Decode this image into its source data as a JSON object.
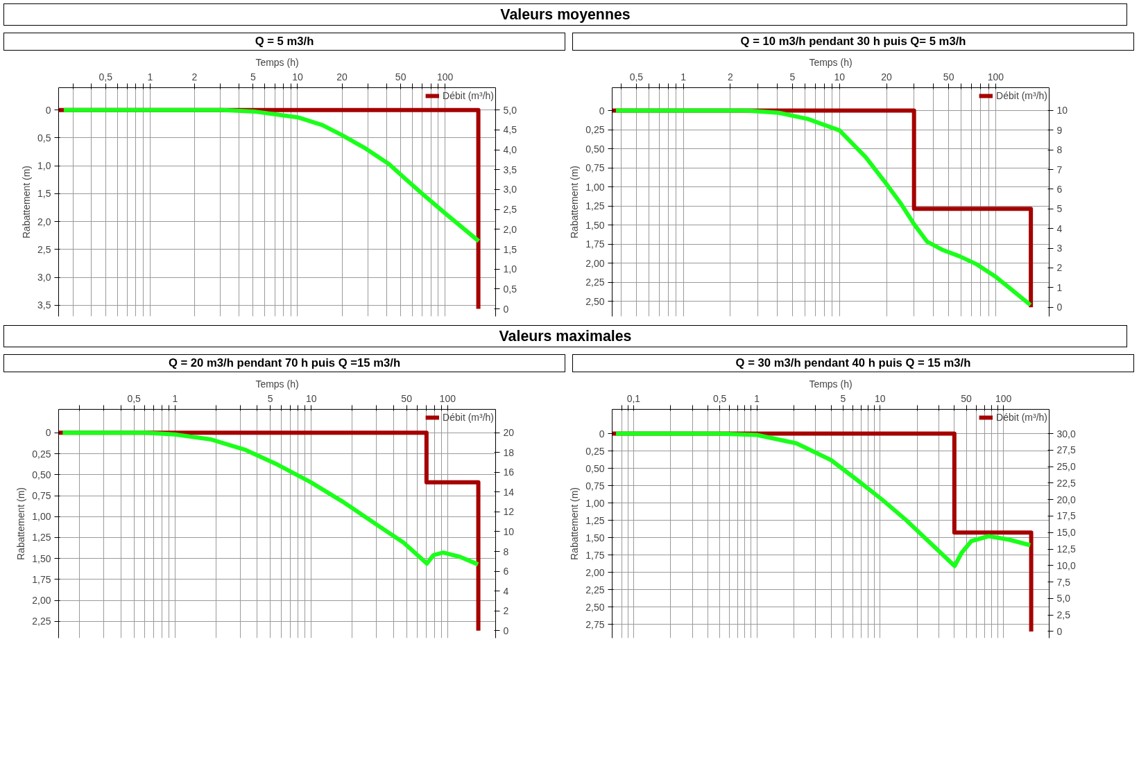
{
  "chart_data": [
    {
      "type": "line",
      "title": "Valeurs moyennes",
      "subtitle": "Q = 5 m3/h",
      "xlabel": "Temps (h)",
      "ylabel": "Rabattement (m)",
      "log": "x",
      "grid": true,
      "legend": "top right",
      "xlim": [
        0.24,
        220
      ],
      "ylim": [
        3.7,
        -0.4
      ],
      "y2lim": [
        -0.19,
        5.56
      ],
      "xticks": [
        {
          "value": 0.3,
          "label": null
        },
        {
          "value": 0.4,
          "label": null
        },
        {
          "value": 0.5,
          "label": "0,5"
        },
        {
          "value": 0.6,
          "label": null
        },
        {
          "value": 0.7,
          "label": null
        },
        {
          "value": 0.8,
          "label": null
        },
        {
          "value": 0.9,
          "label": null
        },
        1,
        2,
        {
          "value": 3,
          "label": null
        },
        {
          "value": 4,
          "label": null
        },
        5,
        {
          "value": 6,
          "label": null
        },
        {
          "value": 7,
          "label": null
        },
        {
          "value": 8,
          "label": null
        },
        {
          "value": 9,
          "label": null
        },
        10,
        20,
        {
          "value": 30,
          "label": null
        },
        {
          "value": 40,
          "label": null
        },
        50,
        {
          "value": 60,
          "label": null
        },
        {
          "value": 70,
          "label": null
        },
        {
          "value": 80,
          "label": null
        },
        {
          "value": 90,
          "label": null
        },
        100
      ],
      "yticks": [
        {
          "value": 0,
          "label": "0"
        },
        {
          "value": 0.5,
          "label": "0,5"
        },
        {
          "value": 1,
          "label": "1,0"
        },
        {
          "value": 1.5,
          "label": "1,5"
        },
        {
          "value": 2,
          "label": "2,0"
        },
        {
          "value": 2.5,
          "label": "2,5"
        },
        {
          "value": 3,
          "label": "3,0"
        },
        {
          "value": 3.5,
          "label": "3,5"
        }
      ],
      "y2ticks": [
        0,
        {
          "value": 0.5,
          "label": "0,5"
        },
        {
          "value": 1,
          "label": "1,0"
        },
        {
          "value": 1.5,
          "label": "1,5"
        },
        {
          "value": 2,
          "label": "2,0"
        },
        {
          "value": 2.5,
          "label": "2,5"
        },
        {
          "value": 3,
          "label": "3,0"
        },
        {
          "value": 3.5,
          "label": "3,5"
        },
        {
          "value": 4,
          "label": "4,0"
        },
        {
          "value": 4.5,
          "label": "4,5"
        },
        {
          "value": 5,
          "label": "5,0"
        }
      ],
      "series": [
        {
          "name": "Débit (m³/h)",
          "color": "#a50000",
          "axis": "y2",
          "x": [
            0.24,
            168,
            168
          ],
          "values": [
            5,
            5,
            0
          ]
        },
        {
          "color": "#1aff1a",
          "x": [
            0.26,
            3.1,
            5.2,
            10,
            14.7,
            20,
            28.9,
            41.7,
            53.6,
            70,
            100,
            169
          ],
          "values": [
            0,
            0,
            0.03,
            0.13,
            0.27,
            0.45,
            0.69,
            0.97,
            1.23,
            1.5,
            1.85,
            2.35
          ]
        }
      ]
    },
    {
      "type": "line",
      "subtitle": "Q = 10 m3/h pendant 30 h puis Q= 5 m3/h",
      "xlabel": "Temps (h)",
      "ylabel": "Rabattement (m)",
      "log": "x",
      "grid": true,
      "legend": "top right",
      "xlim": [
        0.35,
        220
      ],
      "ylim": [
        2.7,
        -0.3
      ],
      "y2lim": [
        -0.47,
        11.16
      ],
      "xticks": [
        {
          "value": 0.4,
          "label": null
        },
        {
          "value": 0.5,
          "label": "0,5"
        },
        {
          "value": 0.6,
          "label": null
        },
        {
          "value": 0.7,
          "label": null
        },
        {
          "value": 0.8,
          "label": null
        },
        {
          "value": 0.9,
          "label": null
        },
        1,
        2,
        {
          "value": 3,
          "label": null
        },
        {
          "value": 4,
          "label": null
        },
        5,
        {
          "value": 6,
          "label": null
        },
        {
          "value": 7,
          "label": null
        },
        {
          "value": 8,
          "label": null
        },
        {
          "value": 9,
          "label": null
        },
        10,
        20,
        {
          "value": 30,
          "label": null
        },
        {
          "value": 40,
          "label": null
        },
        50,
        {
          "value": 60,
          "label": null
        },
        {
          "value": 70,
          "label": null
        },
        {
          "value": 80,
          "label": null
        },
        {
          "value": 90,
          "label": null
        },
        100
      ],
      "yticks": [
        {
          "value": 0,
          "label": "0"
        },
        {
          "value": 0.25,
          "label": "0,25"
        },
        {
          "value": 0.5,
          "label": "0,50"
        },
        {
          "value": 0.75,
          "label": "0,75"
        },
        {
          "value": 1,
          "label": "1,00"
        },
        {
          "value": 1.25,
          "label": "1,25"
        },
        {
          "value": 1.5,
          "label": "1,50"
        },
        {
          "value": 1.75,
          "label": "1,75"
        },
        {
          "value": 2,
          "label": "2,00"
        },
        {
          "value": 2.25,
          "label": "2,25"
        },
        {
          "value": 2.5,
          "label": "2,50"
        }
      ],
      "y2ticks": [
        0,
        1,
        2,
        3,
        4,
        5,
        6,
        7,
        8,
        9,
        10
      ],
      "series": [
        {
          "name": "Débit (m³/h)",
          "color": "#a50000",
          "axis": "y2",
          "x": [
            0.35,
            30,
            30,
            168,
            168
          ],
          "values": [
            10,
            10,
            5,
            5,
            0
          ]
        },
        {
          "color": "#1aff1a",
          "x": [
            0.37,
            2.54,
            4.1,
            6.27,
            10,
            14.7,
            20.1,
            24.9,
            30,
            36.4,
            46,
            58.6,
            74.6,
            98.5,
            125,
            167
          ],
          "values": [
            0,
            0,
            0.03,
            0.11,
            0.26,
            0.61,
            0.97,
            1.23,
            1.49,
            1.72,
            1.83,
            1.91,
            2.01,
            2.17,
            2.34,
            2.55
          ]
        }
      ]
    },
    {
      "type": "line",
      "title": "Valeurs maximales",
      "subtitle": "Q = 20 m3/h pendant 70 h puis Q =15 m3/h",
      "xlabel": "Temps (h)",
      "ylabel": "Rabattement (m)",
      "log": "x",
      "grid": true,
      "legend": "top right",
      "xlim": [
        0.14,
        225
      ],
      "ylim": [
        2.45,
        -0.28
      ],
      "y2lim": [
        -0.76,
        22.37
      ],
      "xticks": [
        {
          "value": 0.2,
          "label": null
        },
        {
          "value": 0.3,
          "label": null
        },
        {
          "value": 0.4,
          "label": null
        },
        {
          "value": 0.5,
          "label": "0,5"
        },
        {
          "value": 0.6,
          "label": null
        },
        {
          "value": 0.7,
          "label": null
        },
        {
          "value": 0.8,
          "label": null
        },
        {
          "value": 0.9,
          "label": null
        },
        1,
        {
          "value": 2,
          "label": null
        },
        {
          "value": 3,
          "label": null
        },
        {
          "value": 4,
          "label": null
        },
        5,
        {
          "value": 6,
          "label": null
        },
        {
          "value": 7,
          "label": null
        },
        {
          "value": 8,
          "label": null
        },
        {
          "value": 9,
          "label": null
        },
        10,
        {
          "value": 20,
          "label": null
        },
        {
          "value": 30,
          "label": null
        },
        {
          "value": 40,
          "label": null
        },
        50,
        {
          "value": 60,
          "label": null
        },
        {
          "value": 70,
          "label": null
        },
        {
          "value": 80,
          "label": null
        },
        {
          "value": 90,
          "label": null
        },
        100
      ],
      "yticks": [
        {
          "value": 0,
          "label": "0"
        },
        {
          "value": 0.25,
          "label": "0,25"
        },
        {
          "value": 0.5,
          "label": "0,50"
        },
        {
          "value": 0.75,
          "label": "0,75"
        },
        {
          "value": 1,
          "label": "1,00"
        },
        {
          "value": 1.25,
          "label": "1,25"
        },
        {
          "value": 1.5,
          "label": "1,50"
        },
        {
          "value": 1.75,
          "label": "1,75"
        },
        {
          "value": 2,
          "label": "2,00"
        },
        {
          "value": 2.25,
          "label": "2,25"
        }
      ],
      "y2ticks": [
        0,
        2,
        4,
        6,
        8,
        10,
        12,
        14,
        16,
        18,
        20
      ],
      "series": [
        {
          "name": "Débit (m³/h)",
          "color": "#a50000",
          "axis": "y2",
          "x": [
            0.14,
            70,
            70,
            168,
            168
          ],
          "values": [
            20,
            20,
            15,
            15,
            0
          ]
        },
        {
          "color": "#1aff1a",
          "x": [
            0.15,
            0.6,
            1,
            1.85,
            3.24,
            5.66,
            9.9,
            17.3,
            30.4,
            47.5,
            70.5,
            78.7,
            92.9,
            123,
            167
          ],
          "values": [
            0,
            0,
            0.02,
            0.08,
            0.2,
            0.38,
            0.59,
            0.83,
            1.1,
            1.31,
            1.56,
            1.46,
            1.43,
            1.48,
            1.57
          ]
        }
      ]
    },
    {
      "type": "line",
      "subtitle": "Q = 30 m3/h pendant 40 h puis Q = 15 m3/h",
      "xlabel": "Temps (h)",
      "ylabel": "Rabattement (m)",
      "log": "x",
      "grid": true,
      "legend": "top right",
      "xlim": [
        0.067,
        235
      ],
      "ylim": [
        2.95,
        -0.35
      ],
      "y2lim": [
        -1.0,
        33.68
      ],
      "xticks": [
        {
          "value": 0.08,
          "label": null
        },
        {
          "value": 0.09,
          "label": null
        },
        {
          "value": 0.1,
          "label": "0,1"
        },
        {
          "value": 0.2,
          "label": null
        },
        {
          "value": 0.3,
          "label": null
        },
        {
          "value": 0.4,
          "label": null
        },
        {
          "value": 0.5,
          "label": "0,5"
        },
        {
          "value": 0.6,
          "label": null
        },
        {
          "value": 0.7,
          "label": null
        },
        {
          "value": 0.8,
          "label": null
        },
        {
          "value": 0.9,
          "label": null
        },
        1,
        {
          "value": 2,
          "label": null
        },
        {
          "value": 3,
          "label": null
        },
        {
          "value": 4,
          "label": null
        },
        5,
        {
          "value": 6,
          "label": null
        },
        {
          "value": 7,
          "label": null
        },
        {
          "value": 8,
          "label": null
        },
        {
          "value": 9,
          "label": null
        },
        10,
        {
          "value": 20,
          "label": null
        },
        {
          "value": 30,
          "label": null
        },
        {
          "value": 40,
          "label": null
        },
        50,
        {
          "value": 60,
          "label": null
        },
        {
          "value": 70,
          "label": null
        },
        {
          "value": 80,
          "label": null
        },
        {
          "value": 90,
          "label": null
        },
        100
      ],
      "yticks": [
        {
          "value": 0,
          "label": "0"
        },
        {
          "value": 0.25,
          "label": "0,25"
        },
        {
          "value": 0.5,
          "label": "0,50"
        },
        {
          "value": 0.75,
          "label": "0,75"
        },
        {
          "value": 1,
          "label": "1,00"
        },
        {
          "value": 1.25,
          "label": "1,25"
        },
        {
          "value": 1.5,
          "label": "1,50"
        },
        {
          "value": 1.75,
          "label": "1,75"
        },
        {
          "value": 2,
          "label": "2,00"
        },
        {
          "value": 2.25,
          "label": "2,25"
        },
        {
          "value": 2.5,
          "label": "2,50"
        },
        {
          "value": 2.75,
          "label": "2,75"
        }
      ],
      "y2ticks": [
        0,
        {
          "value": 2.5,
          "label": "2,5"
        },
        {
          "value": 5,
          "label": "5,0"
        },
        {
          "value": 7.5,
          "label": "7,5"
        },
        {
          "value": 10,
          "label": "10,0"
        },
        {
          "value": 12.5,
          "label": "12,5"
        },
        {
          "value": 15,
          "label": "15,0"
        },
        {
          "value": 17.5,
          "label": "17,5"
        },
        {
          "value": 20,
          "label": "20,0"
        },
        {
          "value": 22.5,
          "label": "22,5"
        },
        {
          "value": 25,
          "label": "25,0"
        },
        {
          "value": 27.5,
          "label": "27,5"
        },
        {
          "value": 30,
          "label": "30,0"
        }
      ],
      "series": [
        {
          "name": "Débit (m³/h)",
          "color": "#a50000",
          "axis": "y2",
          "x": [
            0.067,
            40,
            40,
            168,
            168
          ],
          "values": [
            30,
            30,
            15,
            15,
            0
          ]
        },
        {
          "color": "#1aff1a",
          "x": [
            0.072,
            0.48,
            1,
            2.09,
            3.98,
            6.63,
            10.5,
            16.3,
            23.9,
            40.2,
            45.8,
            55,
            76,
            111,
            165
          ],
          "values": [
            0,
            0,
            0.02,
            0.14,
            0.38,
            0.68,
            0.96,
            1.25,
            1.53,
            1.91,
            1.72,
            1.55,
            1.48,
            1.53,
            1.61
          ]
        }
      ]
    }
  ]
}
